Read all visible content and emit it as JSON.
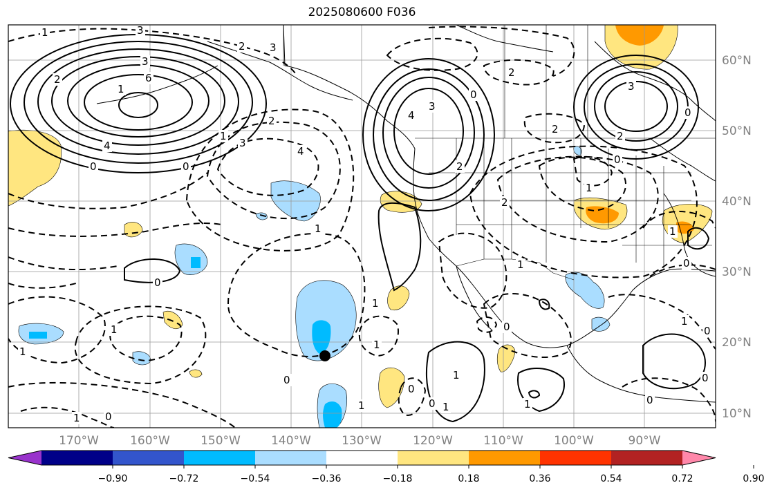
{
  "title": "2025080600 F036",
  "lat_labels": [
    "60°N",
    "50°N",
    "40°N",
    "30°N",
    "20°N",
    "10°N"
  ],
  "lon_labels": [
    "170°W",
    "160°W",
    "150°W",
    "140°W",
    "130°W",
    "120°W",
    "110°W",
    "100°W",
    "90°W"
  ],
  "colorbar": {
    "colors": [
      "#9933cc",
      "#000088",
      "#3355cc",
      "#00bbff",
      "#aaddff",
      "#ffffff",
      "#ffe680",
      "#ff9900",
      "#ff3300",
      "#b22222",
      "#ff88aa"
    ],
    "ticks": [
      "−0.90",
      "−0.72",
      "−0.54",
      "−0.36",
      "−0.18",
      "0.18",
      "0.36",
      "0.54",
      "0.72",
      "0.90"
    ]
  },
  "contour_labels": [
    "1",
    "3",
    "2",
    "3",
    "6",
    "3",
    "2",
    "4",
    "0",
    "0",
    "1",
    "3",
    "2",
    "4",
    "1",
    "0",
    "1",
    "1",
    "0",
    "1",
    "0",
    "3",
    "4",
    "0",
    "2",
    "2",
    "2",
    "1",
    "2",
    "3",
    "2",
    "0",
    "0",
    "1",
    "0",
    "1",
    "1",
    "0",
    "1",
    "1",
    "0",
    "1",
    "0",
    "0",
    "1",
    "1",
    "0",
    "0",
    "1",
    "1"
  ],
  "marker": "storm-center"
}
